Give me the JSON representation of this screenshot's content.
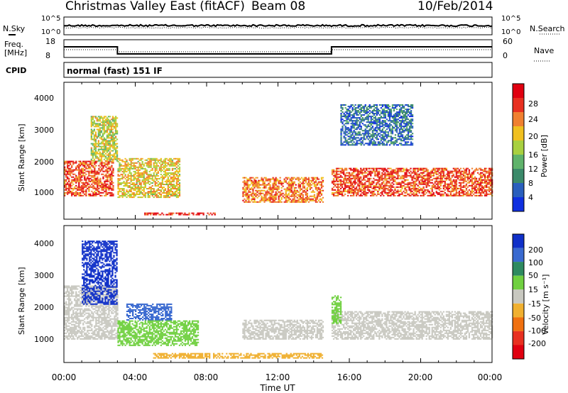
{
  "header": {
    "title": "Christmas Valley East (fitACF)",
    "beam": "Beam 08",
    "date": "10/Feb/2014"
  },
  "params": {
    "nsky_label": "N.Sky",
    "nsky_high": "10^5",
    "nsky_low": "10^0",
    "nsearch_label": "N.Search",
    "nsearch_high": "10^5",
    "nsearch_low": "10^0",
    "freq_label_1": "Freq.",
    "freq_label_2": "[MHz]",
    "freq_high": "18",
    "freq_low": "8",
    "nave_label": "Nave",
    "nave_high": "60",
    "nave_low": "0",
    "cpid_label": "CPID",
    "cpid_value": "normal (fast) 151 IF",
    "freq_profile_mhz": [
      {
        "t": 0.0,
        "v": 14.0
      },
      {
        "t": 3.0,
        "v": 14.0
      },
      {
        "t": 3.0,
        "v": 10.0
      },
      {
        "t": 15.0,
        "v": 10.0
      },
      {
        "t": 15.0,
        "v": 14.0
      },
      {
        "t": 24.0,
        "v": 14.0
      }
    ]
  },
  "power_panel": {
    "ylabel": "Slant Range [km]",
    "yticks": [
      "1000",
      "2000",
      "3000",
      "4000"
    ],
    "colorbar_label": "Power [dB]",
    "colorbar_ticks": [
      "4",
      "8",
      "12",
      "16",
      "20",
      "24",
      "28"
    ],
    "colorbar_colors": [
      "#1030e0",
      "#2a5fbd",
      "#3b8a6a",
      "#5fb36b",
      "#a8d040",
      "#f0c020",
      "#f08030",
      "#e83020",
      "#e00010"
    ]
  },
  "velocity_panel": {
    "ylabel": "Slant Range [km]",
    "yticks": [
      "1000",
      "2000",
      "3000",
      "4000"
    ],
    "colorbar_label": "Velocity [m s⁻¹]",
    "colorbar_ticks": [
      "200",
      "100",
      "50",
      "15",
      "-15",
      "-50",
      "-100",
      "-200"
    ],
    "colorbar_colors": [
      "#1030c8",
      "#3a6ad0",
      "#2e8a60",
      "#70d040",
      "#c8c8c0",
      "#f0b030",
      "#f07010",
      "#e83020",
      "#e00010"
    ]
  },
  "x_axis": {
    "label": "Time UT",
    "ticks": [
      "00:00",
      "04:00",
      "08:00",
      "12:00",
      "16:00",
      "20:00",
      "00:00"
    ]
  },
  "chart_data": [
    {
      "type": "heatmap",
      "title": "Christmas Valley East (fitACF)",
      "variable": "Power [dB]",
      "xlabel": "Time UT",
      "ylabel": "Slant Range [km]",
      "xlim": [
        0,
        24
      ],
      "ylim": [
        180,
        4500
      ],
      "clim": [
        0,
        30
      ],
      "regions": [
        {
          "t_start": 0.0,
          "t_end": 2.8,
          "range_min": 900,
          "range_max": 2000,
          "value": 24
        },
        {
          "t_start": 1.5,
          "t_end": 3.0,
          "range_min": 2000,
          "range_max": 3400,
          "value": 16
        },
        {
          "t_start": 3.0,
          "t_end": 6.5,
          "range_min": 850,
          "range_max": 2100,
          "value": 18
        },
        {
          "t_start": 4.5,
          "t_end": 8.5,
          "range_min": 300,
          "range_max": 380,
          "value": 26
        },
        {
          "t_start": 10.0,
          "t_end": 14.5,
          "range_min": 700,
          "range_max": 1500,
          "value": 22
        },
        {
          "t_start": 15.0,
          "t_end": 24.0,
          "range_min": 900,
          "range_max": 1800,
          "value": 24
        },
        {
          "t_start": 15.5,
          "t_end": 19.5,
          "range_min": 2500,
          "range_max": 3800,
          "value": 6
        }
      ]
    },
    {
      "type": "heatmap",
      "title": "Christmas Valley East (fitACF)",
      "variable": "Velocity [m s⁻¹]",
      "xlabel": "Time UT",
      "ylabel": "Slant Range [km]",
      "xlim": [
        0,
        24
      ],
      "ylim": [
        180,
        4500
      ],
      "clim": [
        -200,
        200
      ],
      "regions": [
        {
          "t_start": 0.0,
          "t_end": 3.0,
          "range_min": 900,
          "range_max": 2600,
          "value": 0
        },
        {
          "t_start": 1.0,
          "t_end": 3.0,
          "range_min": 2000,
          "range_max": 4000,
          "value": 200
        },
        {
          "t_start": 3.5,
          "t_end": 6.0,
          "range_min": 1500,
          "range_max": 2000,
          "value": 120
        },
        {
          "t_start": 3.0,
          "t_end": 7.5,
          "range_min": 700,
          "range_max": 1500,
          "value": 30
        },
        {
          "t_start": 10.0,
          "t_end": 14.5,
          "range_min": 900,
          "range_max": 1500,
          "value": 0
        },
        {
          "t_start": 5.0,
          "t_end": 14.5,
          "range_min": 300,
          "range_max": 450,
          "value": -40
        },
        {
          "t_start": 15.0,
          "t_end": 24.0,
          "range_min": 900,
          "range_max": 1800,
          "value": 0
        },
        {
          "t_start": 15.0,
          "t_end": 15.5,
          "range_min": 1400,
          "range_max": 2300,
          "value": 30
        }
      ]
    }
  ]
}
